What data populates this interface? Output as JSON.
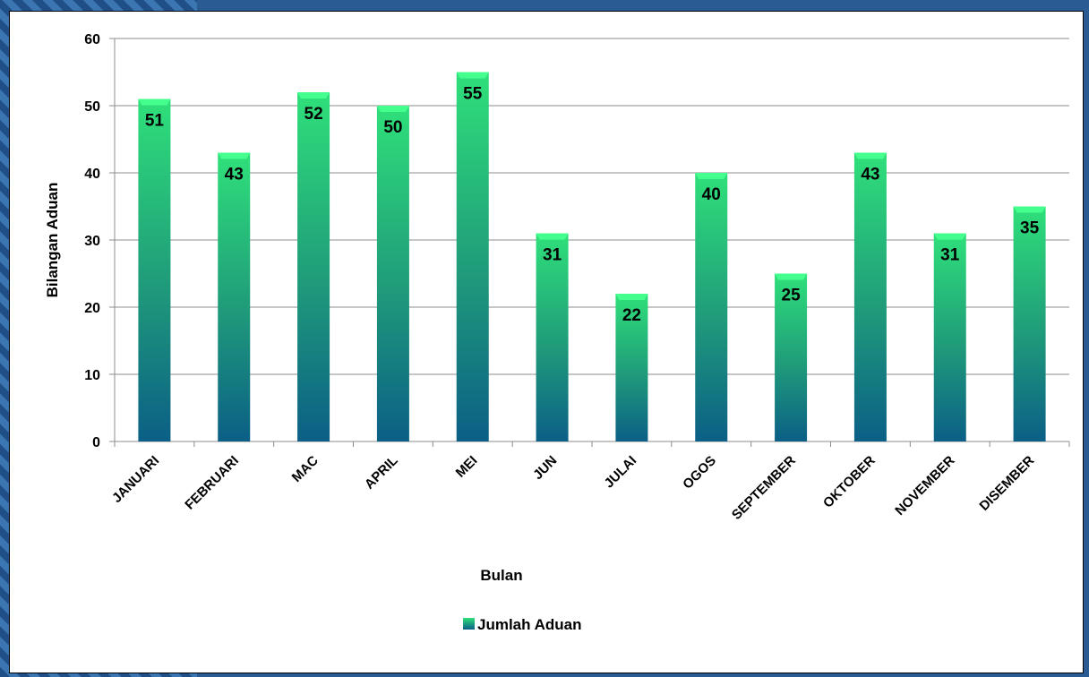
{
  "chart_data": {
    "type": "bar",
    "title": "",
    "xlabel": "Bulan",
    "ylabel": "Bilangan Aduan",
    "ylim": [
      0,
      60
    ],
    "yticks": [
      0,
      10,
      20,
      30,
      40,
      50,
      60
    ],
    "grid": true,
    "legend_position": "bottom",
    "categories": [
      "JANUARI",
      "FEBRUARI",
      "MAC",
      "APRIL",
      "MEI",
      "JUN",
      "JULAI",
      "OGOS",
      "SEPTEMBER",
      "OKTOBER",
      "NOVEMBER",
      "DISEMBER"
    ],
    "series": [
      {
        "name": "Jumlah Aduan",
        "values": [
          51,
          43,
          52,
          50,
          55,
          31,
          22,
          40,
          25,
          43,
          31,
          35
        ]
      }
    ],
    "colors": {
      "bar_top": "#2fe07a",
      "bar_mid": "#1f9a7a",
      "bar_bottom": "#0b5f86",
      "cap": "#44ff8e"
    }
  }
}
